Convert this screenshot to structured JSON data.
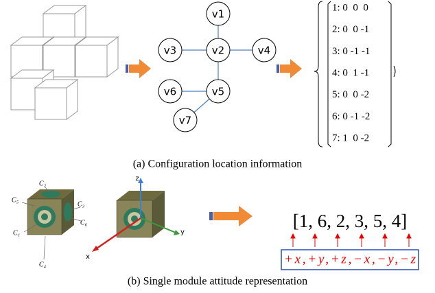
{
  "panel_a": {
    "caption": "(a) Configuration location information",
    "graph_nodes": [
      "v1",
      "v2",
      "v3",
      "v4",
      "v5",
      "v6",
      "v7"
    ],
    "location_rows": [
      "1: 0  0  0",
      "2: 0  0 -1",
      "3: 0 -1 -1",
      "4: 0  1 -1",
      "5: 0  0 -2",
      "6: 0 -1 -2",
      "7: 1  0 -2"
    ]
  },
  "panel_b": {
    "caption": "(b) Single module attitude representation",
    "face_labels": [
      "C₁",
      "C₂",
      "C₃",
      "C₄",
      "C₅",
      "C₆"
    ],
    "axis_labels": [
      "z",
      "x",
      "y"
    ],
    "sequence": "[1, 6, 2, 3, 5, 4]",
    "directions": "+x,+y,+z,−x,−y,−z"
  }
}
